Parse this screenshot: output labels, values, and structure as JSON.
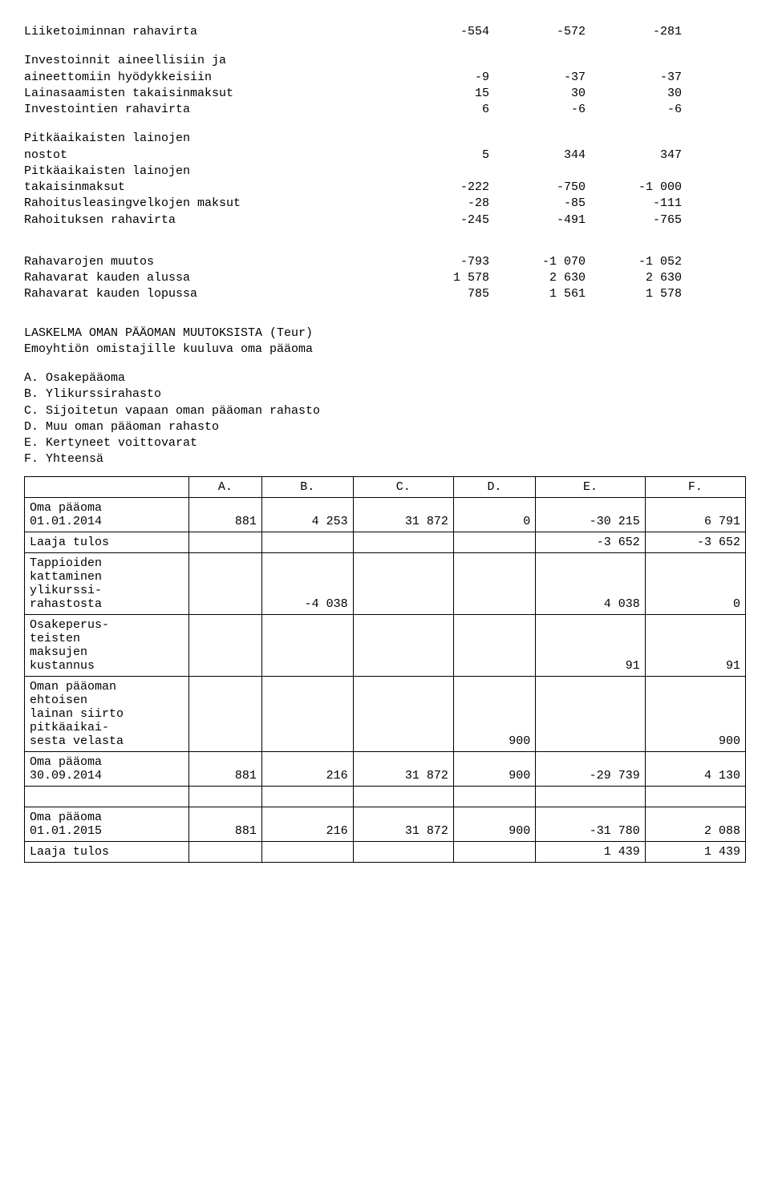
{
  "cashflow": {
    "rows": [
      {
        "label": "Liiketoiminnan rahavirta",
        "c1": "-554",
        "c2": "-572",
        "c3": "-281"
      },
      {
        "spacer": true
      },
      {
        "label": "Investoinnit aineellisiin ja",
        "c1": "",
        "c2": "",
        "c3": ""
      },
      {
        "label": "aineettomiin hyödykkeisiin",
        "c1": "-9",
        "c2": "-37",
        "c3": "-37"
      },
      {
        "label": "Lainasaamisten takaisinmaksut",
        "c1": "15",
        "c2": "30",
        "c3": "30"
      },
      {
        "label": "Investointien rahavirta",
        "c1": "6",
        "c2": "-6",
        "c3": "-6"
      },
      {
        "spacer": true
      },
      {
        "label": "Pitkäaikaisten lainojen",
        "c1": "",
        "c2": "",
        "c3": ""
      },
      {
        "label": "nostot",
        "c1": "5",
        "c2": "344",
        "c3": "347"
      },
      {
        "label": "Pitkäaikaisten lainojen",
        "c1": "",
        "c2": "",
        "c3": ""
      },
      {
        "label": "takaisinmaksut",
        "c1": "-222",
        "c2": "-750",
        "c3": "-1 000"
      },
      {
        "label": "Rahoitusleasingvelkojen maksut",
        "c1": "-28",
        "c2": "-85",
        "c3": "-111"
      },
      {
        "label": "Rahoituksen rahavirta",
        "c1": "-245",
        "c2": "-491",
        "c3": "-765"
      },
      {
        "spacer": true
      },
      {
        "spacer": true
      },
      {
        "label": "Rahavarojen muutos",
        "c1": "-793",
        "c2": "-1 070",
        "c3": "-1 052"
      },
      {
        "label": "Rahavarat kauden alussa",
        "c1": "1 578",
        "c2": "2 630",
        "c3": "2 630"
      },
      {
        "label": "Rahavarat kauden lopussa",
        "c1": "785",
        "c2": "1 561",
        "c3": "1 578"
      }
    ]
  },
  "section_title_line1": "LASKELMA OMAN PÄÄOMAN MUUTOKSISTA (Teur)",
  "section_title_line2": "Emoyhtiön omistajille kuuluva oma pääoma",
  "legend": [
    "A. Osakepääoma",
    "B. Ylikurssirahasto",
    "C. Sijoitetun vapaan oman pääoman rahasto",
    "D. Muu oman pääoman rahasto",
    "E. Kertyneet voittovarat",
    "F. Yhteensä"
  ],
  "equity": {
    "headers": [
      "",
      "A.",
      "B.",
      "C.",
      "D.",
      "E.",
      "F."
    ],
    "rows": [
      {
        "label": "Oma pääoma\n01.01.2014",
        "a": "881",
        "b": "4 253",
        "c": "31 872",
        "d": "0",
        "e": "-30 215",
        "f": "6 791"
      },
      {
        "label": "Laaja tulos",
        "a": "",
        "b": "",
        "c": "",
        "d": "",
        "e": "-3 652",
        "f": "-3 652"
      },
      {
        "label": "Tappioiden\nkattaminen\nylikurssi-\nrahastosta",
        "a": "",
        "b": "-4 038",
        "c": "",
        "d": "",
        "e": "4 038",
        "f": "0"
      },
      {
        "label": "Osakeperus-\nteisten\nmaksujen\nkustannus",
        "a": "",
        "b": "",
        "c": "",
        "d": "",
        "e": "91",
        "f": "91"
      },
      {
        "label": "Oman pääoman\nehtoisen\nlainan siirto\npitkäaikai-\nsesta velasta",
        "a": "",
        "b": "",
        "c": "",
        "d": "900",
        "e": "",
        "f": "900"
      },
      {
        "label": "Oma pääoma\n30.09.2014",
        "a": "881",
        "b": "216",
        "c": "31 872",
        "d": "900",
        "e": "-29 739",
        "f": "4 130"
      },
      {
        "label": " ",
        "a": "",
        "b": "",
        "c": "",
        "d": "",
        "e": "",
        "f": ""
      },
      {
        "label": "Oma pääoma\n01.01.2015",
        "a": "881",
        "b": "216",
        "c": "31 872",
        "d": "900",
        "e": "-31 780",
        "f": "2 088"
      },
      {
        "label": "Laaja tulos",
        "a": "",
        "b": "",
        "c": "",
        "d": "",
        "e": "1 439",
        "f": "1 439"
      }
    ]
  }
}
